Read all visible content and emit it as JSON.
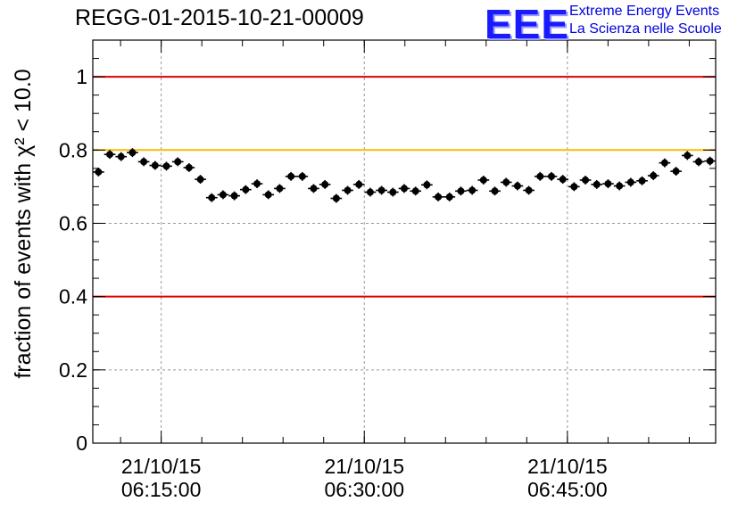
{
  "header": {
    "title": "REGG-01-2015-10-21-00009",
    "logo_text": "EEE",
    "logo_line1": "Extreme Energy Events",
    "logo_line2": "La Scienza nelle Scuole"
  },
  "colors": {
    "threshold_red": "#dd0000",
    "threshold_orange": "#ffbb00",
    "points": "#000000",
    "grid": "#999999",
    "logo": "#1a1aff"
  },
  "chart_data": {
    "type": "scatter",
    "title": "REGG-01-2015-10-21-00009",
    "ylabel": "fraction of events with χ² < 10.0",
    "xlabel": "",
    "ylim": [
      0,
      1.1
    ],
    "xlim": [
      "2015-10-21 06:09:57",
      "2015-10-21 06:55:57"
    ],
    "grid": true,
    "yticks": [
      "0",
      "0.2",
      "0.4",
      "0.6",
      "0.8",
      "1"
    ],
    "xticks": [
      {
        "date": "21/10/15",
        "time": "06:15:00"
      },
      {
        "date": "21/10/15",
        "time": "06:30:00"
      },
      {
        "date": "21/10/15",
        "time": "06:45:00"
      }
    ],
    "reference_lines": [
      {
        "y": 1.0,
        "color": "#dd0000"
      },
      {
        "y": 0.8,
        "color": "#ffbb00"
      },
      {
        "y": 0.4,
        "color": "#dd0000"
      }
    ],
    "y_error": 0.012,
    "series": [
      {
        "values": [
          0.74,
          0.788,
          0.782,
          0.793,
          0.768,
          0.758,
          0.756,
          0.768,
          0.752,
          0.72,
          0.67,
          0.678,
          0.675,
          0.692,
          0.708,
          0.678,
          0.695,
          0.728,
          0.728,
          0.695,
          0.706,
          0.668,
          0.69,
          0.706,
          0.685,
          0.69,
          0.685,
          0.695,
          0.688,
          0.705,
          0.672,
          0.672,
          0.688,
          0.69,
          0.718,
          0.688,
          0.712,
          0.702,
          0.69,
          0.728,
          0.728,
          0.72,
          0.7,
          0.718,
          0.706,
          0.708,
          0.702,
          0.712,
          0.716,
          0.73,
          0.765,
          0.742,
          0.785,
          0.768,
          0.77
        ]
      }
    ]
  }
}
